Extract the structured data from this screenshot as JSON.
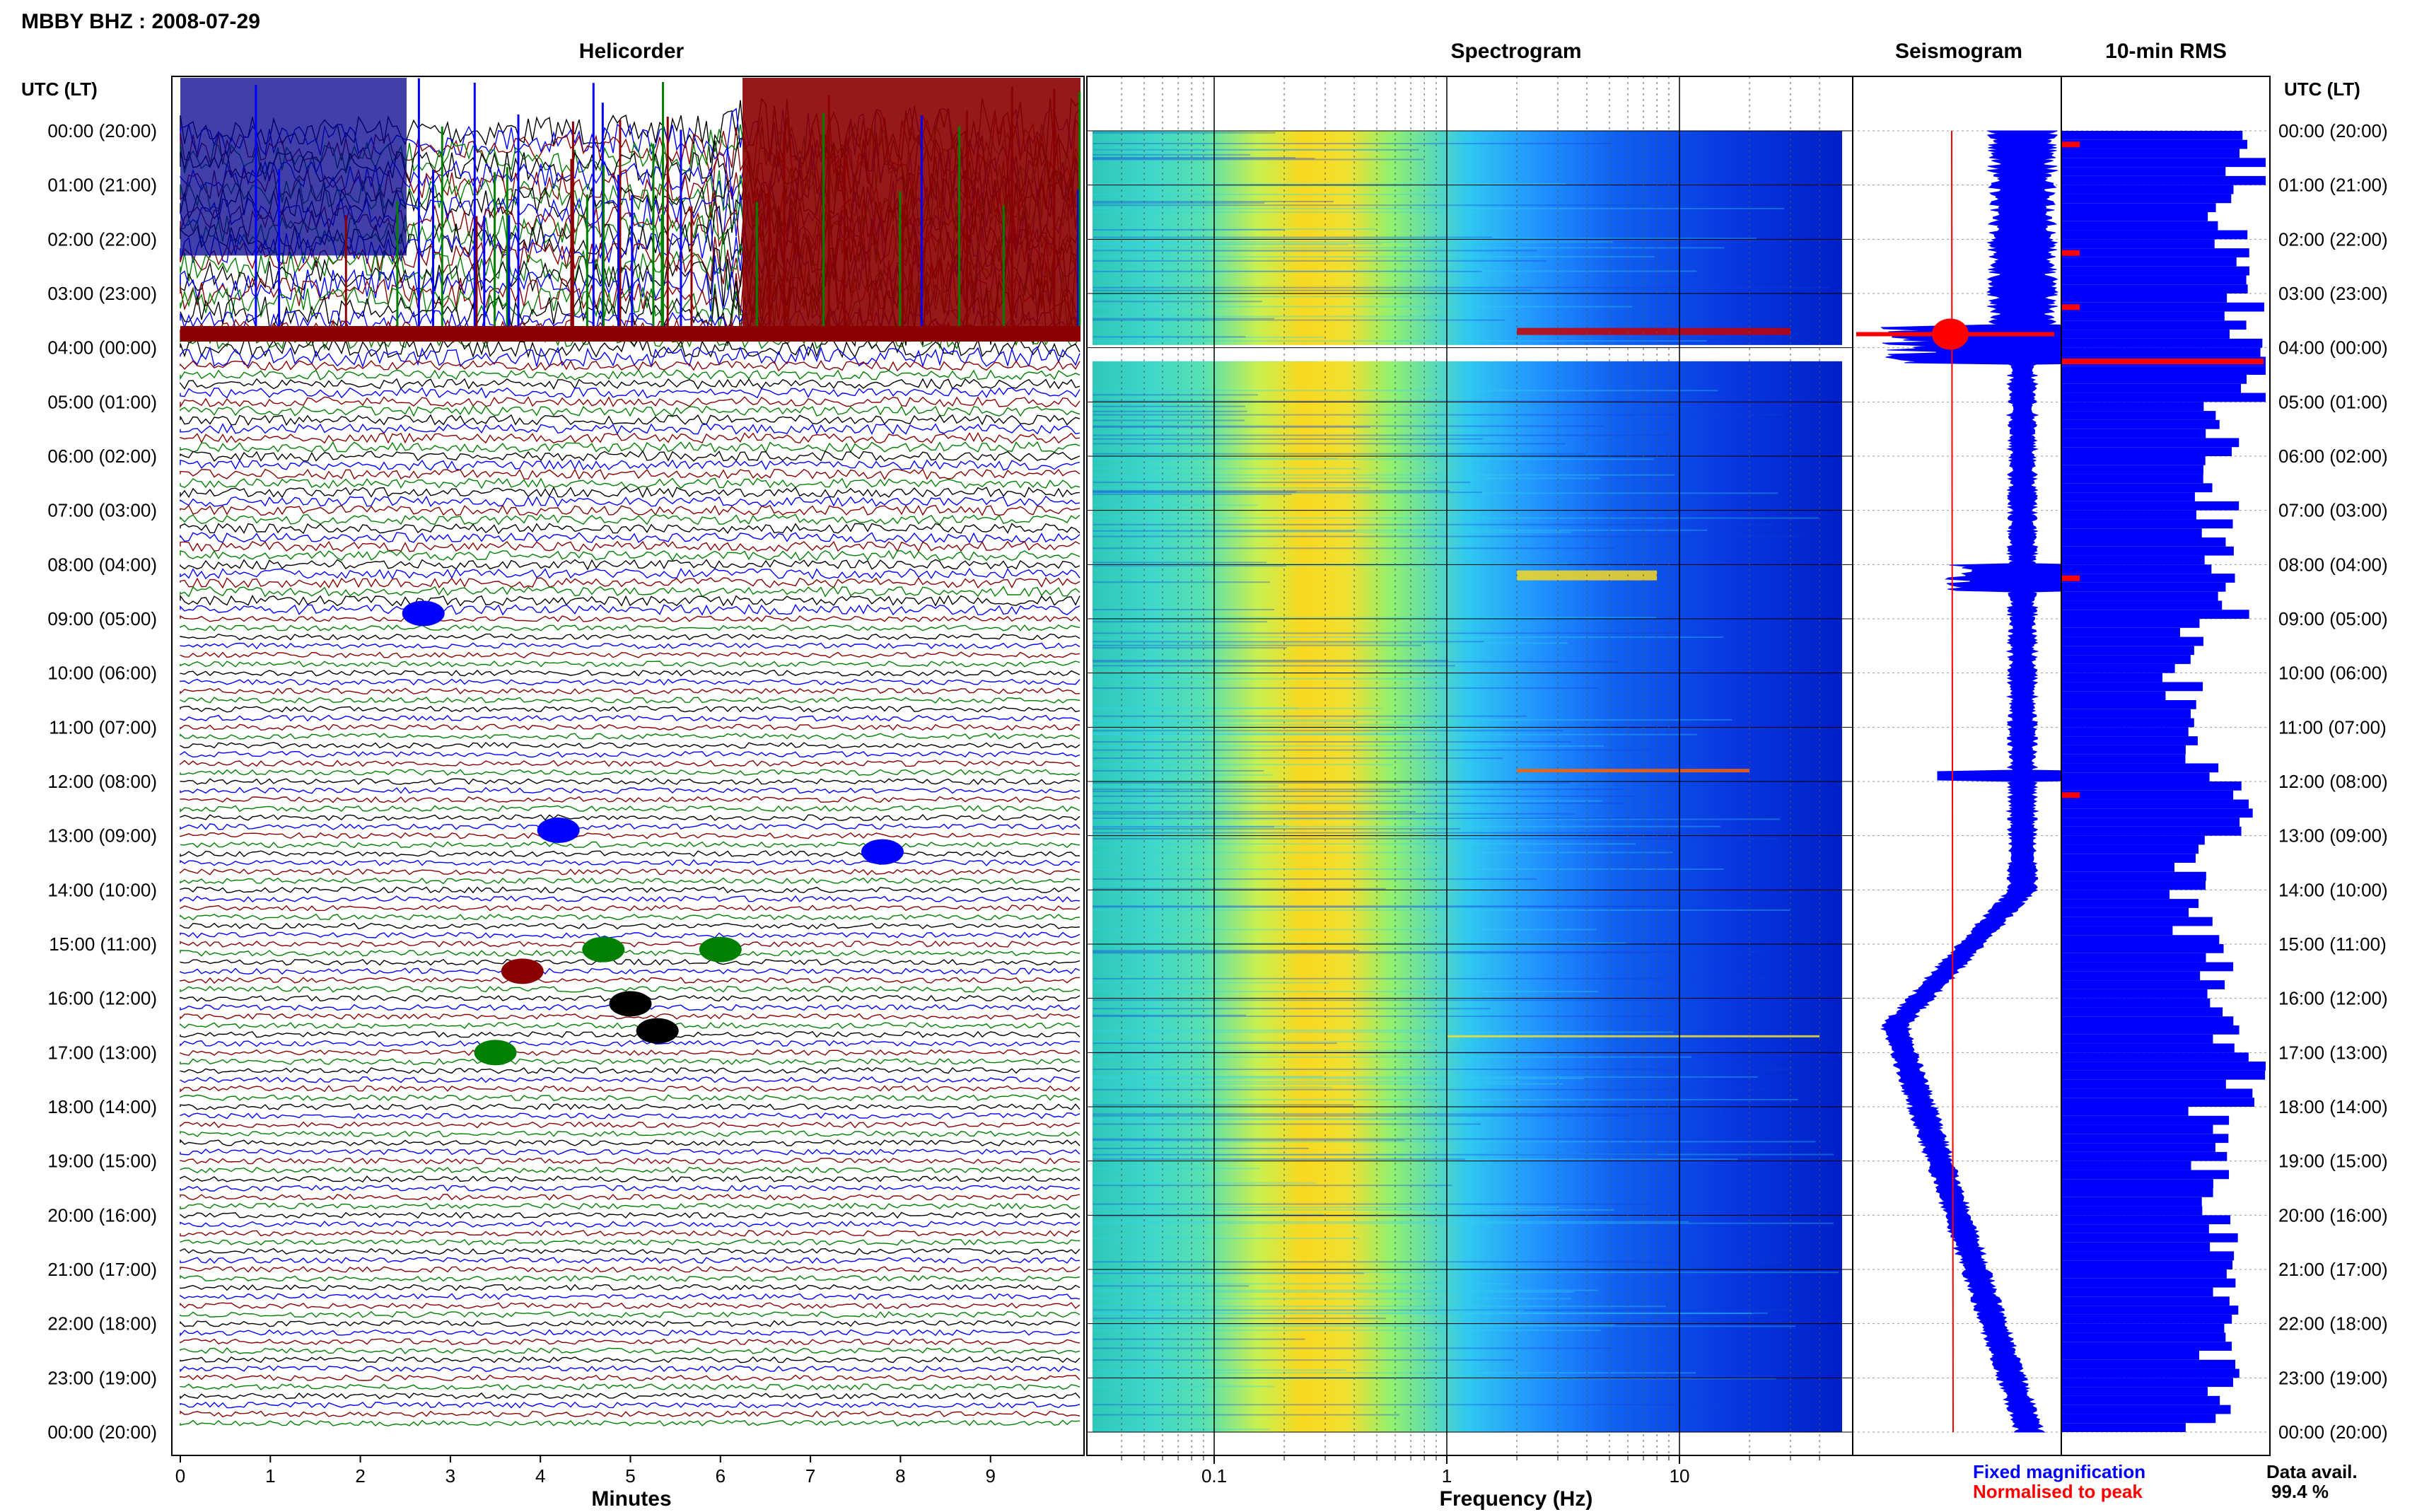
{
  "header": {
    "station_title": "MBBY BHZ : 2008-07-29"
  },
  "panels": {
    "helicorder_title": "Helicorder",
    "spectrogram_title": "Spectrogram",
    "seismogram_title": "Seismogram",
    "rms_title": "10-min RMS"
  },
  "time_axis": {
    "label": "UTC (LT)",
    "ticks": [
      "00:00 (20:00)",
      "01:00 (21:00)",
      "02:00 (22:00)",
      "03:00 (23:00)",
      "04:00 (00:00)",
      "05:00 (01:00)",
      "06:00 (02:00)",
      "07:00 (03:00)",
      "08:00 (04:00)",
      "09:00 (05:00)",
      "10:00 (06:00)",
      "11:00 (07:00)",
      "12:00 (08:00)",
      "13:00 (09:00)",
      "14:00 (10:00)",
      "15:00 (11:00)",
      "16:00 (12:00)",
      "17:00 (13:00)",
      "18:00 (14:00)",
      "19:00 (15:00)",
      "20:00 (16:00)",
      "21:00 (17:00)",
      "22:00 (18:00)",
      "23:00 (19:00)",
      "00:00 (20:00)"
    ]
  },
  "legend": {
    "fixed_label": "Fixed magnification",
    "normalised_label": "Normalised to peak",
    "fixed_color": "#0000ff",
    "normalised_color": "#ff0000"
  },
  "availability": {
    "label": "Data avail.",
    "value": "99.4 %"
  },
  "chart_data": [
    {
      "type": "line",
      "title": "Helicorder",
      "xlabel": "Minutes",
      "ylabel": "UTC (LT)",
      "xlim": [
        0,
        10
      ],
      "x_ticks": [
        "0",
        "1",
        "2",
        "3",
        "4",
        "5",
        "6",
        "7",
        "8",
        "9"
      ],
      "trace_colors": [
        "#000000",
        "#0000ff",
        "#8b0000",
        "#008000"
      ],
      "lines_per_hour": 6
    },
    {
      "type": "heatmap",
      "title": "Spectrogram",
      "xlabel": "Frequency (Hz)",
      "x_scale": "log",
      "xlim": [
        0.03,
        50
      ],
      "x_ticks": [
        "0.1",
        "1",
        "10"
      ],
      "colormap": [
        "#0000c8",
        "#0060ff",
        "#00c8ff",
        "#40ffb0",
        "#d0ff40",
        "#ffd000",
        "#ff6000",
        "#c80000"
      ]
    },
    {
      "type": "line",
      "title": "Seismogram",
      "series": [
        {
          "name": "Fixed magnification",
          "color": "#0000ff"
        },
        {
          "name": "Normalised to peak",
          "color": "#ff0000"
        }
      ]
    },
    {
      "type": "bar",
      "title": "10-min RMS",
      "hours": [
        0,
        1,
        2,
        3,
        4,
        5,
        6,
        7,
        8,
        9,
        10,
        11,
        12,
        13,
        14,
        15,
        16,
        17,
        18,
        19,
        20,
        21,
        22,
        23
      ],
      "values": [
        0.9,
        0.8,
        0.85,
        0.9,
        1.0,
        0.75,
        0.75,
        0.75,
        0.8,
        0.6,
        0.6,
        0.7,
        0.9,
        0.6,
        0.65,
        0.8,
        0.75,
        0.9,
        0.7,
        0.75,
        0.78,
        0.8,
        0.75,
        0.72
      ],
      "peak_hours": [
        0,
        2,
        3,
        4,
        8,
        12
      ]
    }
  ]
}
